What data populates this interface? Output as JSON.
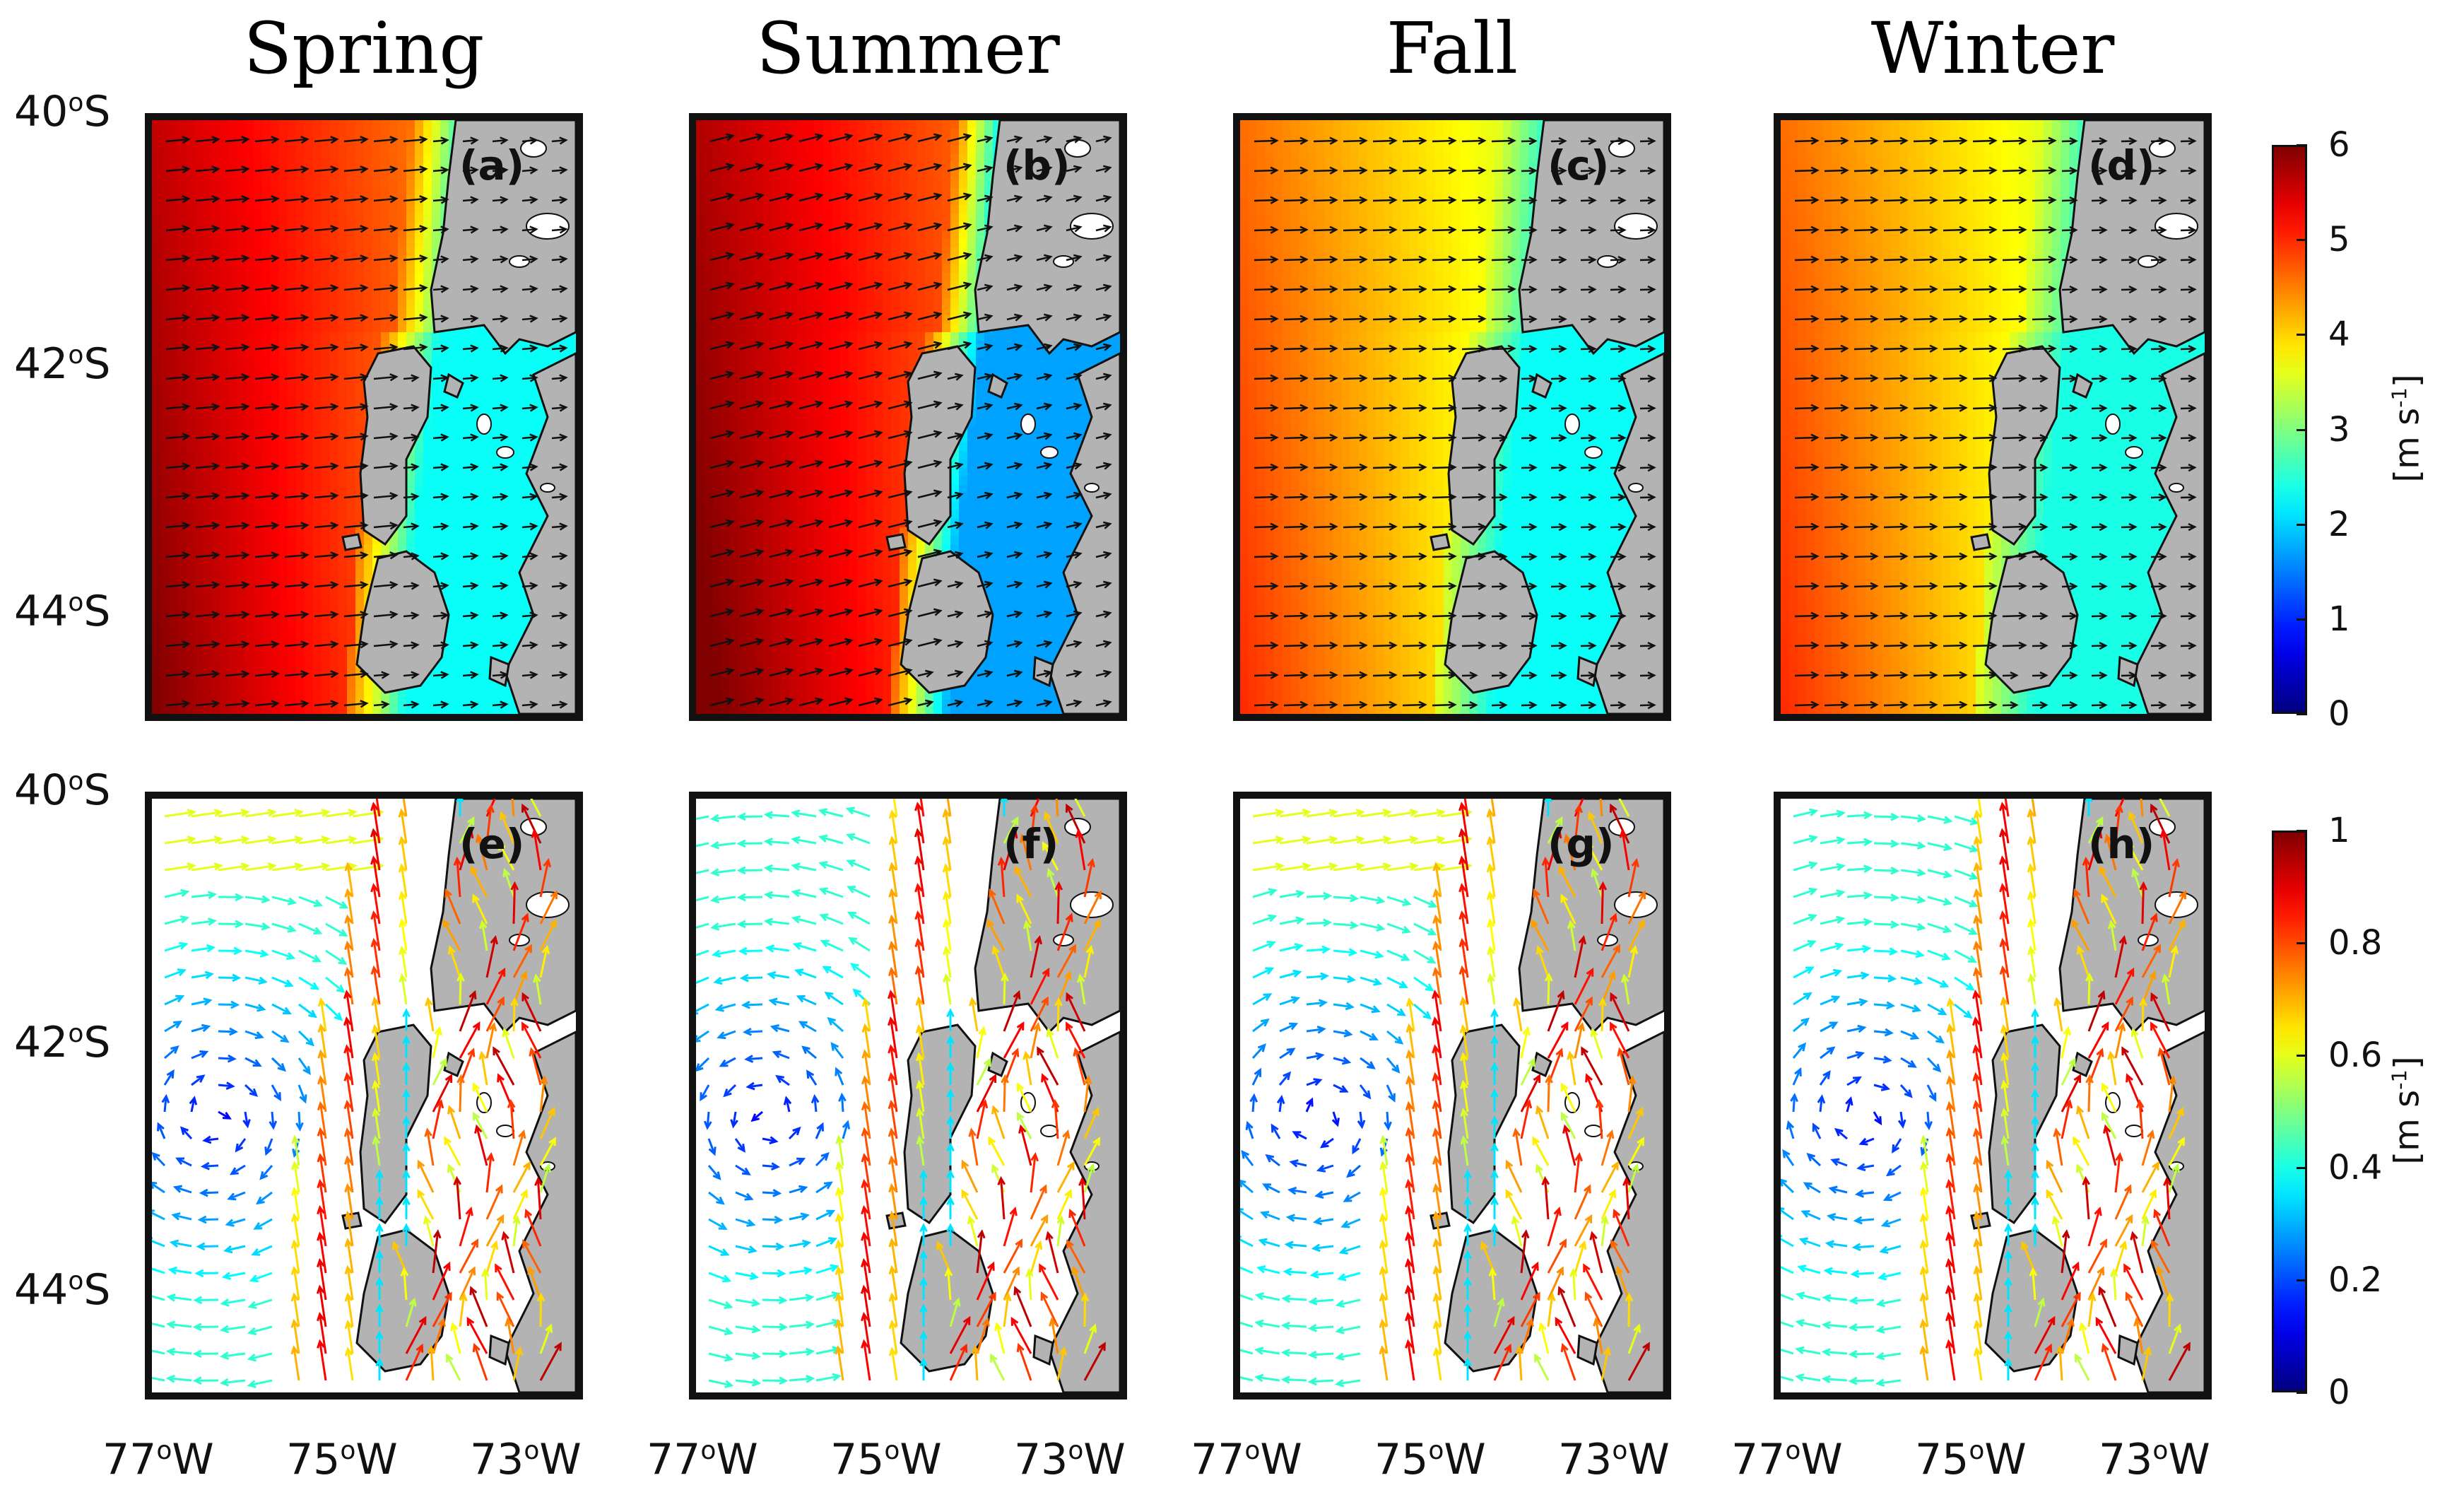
{
  "seasons": [
    "Spring",
    "Summer",
    "Fall",
    "Winter"
  ],
  "panel_labels_top": [
    "(a)",
    "(b)",
    "(c)",
    "(d)"
  ],
  "panel_labels_bottom": [
    "(e)",
    "(f)",
    "(g)",
    "(h)"
  ],
  "lat_labels": [
    {
      "deg": "40",
      "sup": "o",
      "hemi": "S"
    },
    {
      "deg": "42",
      "sup": "o",
      "hemi": "S"
    },
    {
      "deg": "44",
      "sup": "o",
      "hemi": "S"
    }
  ],
  "lon_labels": [
    {
      "deg": "77",
      "sup": "o",
      "hemi": "W"
    },
    {
      "deg": "75",
      "sup": "o",
      "hemi": "W"
    },
    {
      "deg": "73",
      "sup": "o",
      "hemi": "W"
    }
  ],
  "colorbar_top": {
    "ticks": [
      "6",
      "5",
      "4",
      "3",
      "2",
      "1",
      "0"
    ],
    "unit_text": "[m s",
    "unit_sup": "-1",
    "unit_close": "]",
    "range": [
      0,
      6
    ]
  },
  "colorbar_bottom": {
    "ticks": [
      "1",
      "0.8",
      "0.6",
      "0.4",
      "0.2",
      "0"
    ],
    "unit_text": "[m s",
    "unit_sup": "-1",
    "unit_close": "]",
    "range": [
      0,
      1
    ]
  },
  "colors": {
    "land": "#b3b3b3",
    "ocean_bg": "#ffffff",
    "colormap": "jet"
  },
  "map_data": {
    "lat_range_deg_S": [
      40,
      45
    ],
    "lon_range_deg_W": [
      77,
      72.3
    ],
    "wind_speed_offshore_max_m_s": {
      "Spring": 5.6,
      "Summer": 5.7,
      "Fall": 4.6,
      "Winter": 4.6
    },
    "wind_speed_inner_sea_m_s": {
      "Spring": 2.3,
      "Summer": 1.7,
      "Fall": 2.3,
      "Winter": 2.4
    }
  }
}
